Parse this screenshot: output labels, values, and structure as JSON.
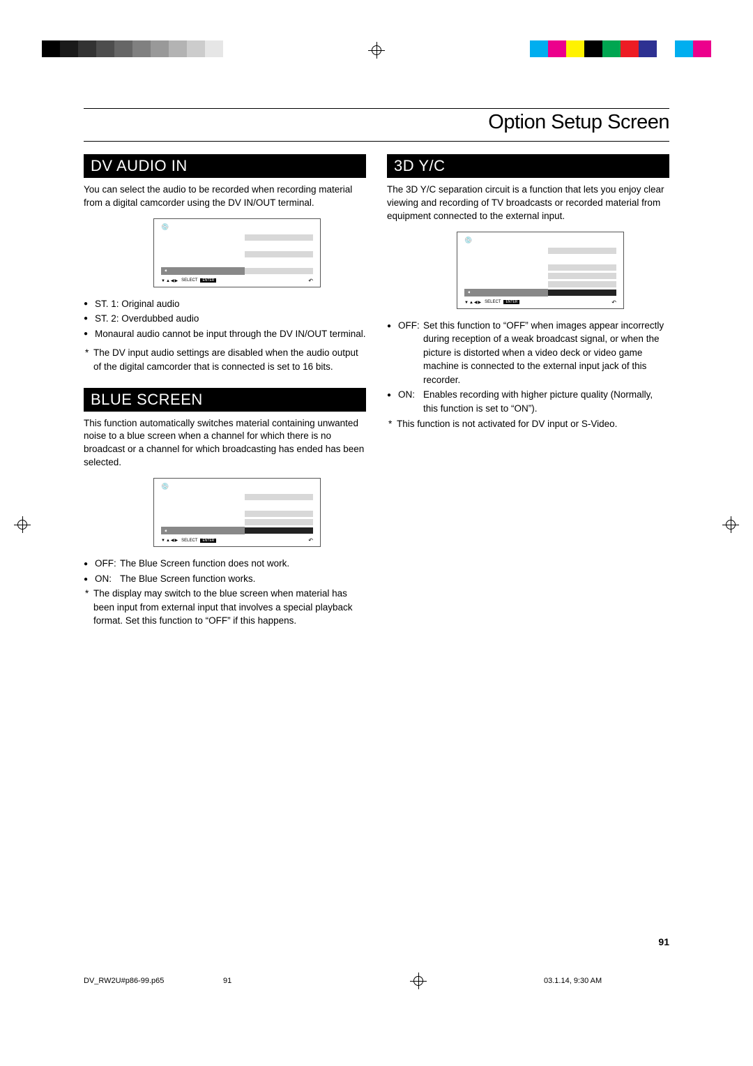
{
  "printMarks": {
    "grays": [
      "#000000",
      "#1a1a1a",
      "#333333",
      "#4d4d4d",
      "#666666",
      "#808080",
      "#999999",
      "#b3b3b3",
      "#cccccc",
      "#e6e6e6"
    ],
    "colors": [
      "#00aeef",
      "#ec008c",
      "#fff200",
      "#000000",
      "#00a651",
      "#ed1c24",
      "#2e3192",
      "#ffffff",
      "#00aeef",
      "#ec008c"
    ]
  },
  "page": {
    "title": "Option Setup Screen",
    "number": "91"
  },
  "dvAudio": {
    "heading": "DV AUDIO IN",
    "intro": "You can select the audio to be recorded when recording material from a digital camcorder using the DV IN/OUT terminal.",
    "bullets": [
      "ST. 1: Original audio",
      "ST. 2: Overdubbed audio",
      "Monaural audio cannot be input through the DV IN/OUT terminal."
    ],
    "notes": [
      "The DV input audio settings are disabled when the audio output of the digital camcorder that is connected is set to 16 bits."
    ]
  },
  "blueScreen": {
    "heading": "BLUE SCREEN",
    "intro": "This function automatically switches material containing unwanted noise to a blue screen when a channel for which there is no broadcast or a channel for which broadcasting has ended has been selected.",
    "defs": [
      {
        "label": "OFF:",
        "text": "The Blue Screen function does not work."
      },
      {
        "label": "ON:",
        "text": "The Blue Screen function works."
      }
    ],
    "notes": [
      "The display may switch to the blue screen when material has been input from external input that involves a special playback format. Set this function to “OFF” if this happens."
    ]
  },
  "ydc": {
    "heading": "3D Y/C",
    "intro": "The 3D Y/C separation circuit is a function that lets you enjoy clear viewing and recording of TV broadcasts or recorded material from equipment connected to the external input.",
    "defs": [
      {
        "label": "OFF:",
        "text": "Set this function to “OFF” when images appear incorrectly during reception of a weak broadcast signal, or when the picture is distorted when a video deck or video game machine is connected to the external input jack of this recorder."
      },
      {
        "label": "ON:",
        "text": "Enables recording with higher picture quality (Normally, this function is set to “ON”)."
      }
    ],
    "notes": [
      "This function is not activated for DV input or S-Video."
    ]
  },
  "menuFig": {
    "selectLabel": "SELECT",
    "enterLabel": "ENTER",
    "returnGlyph": "↶",
    "discGlyph": "💿",
    "arrowGlyph": "▼▲◀▶",
    "pointerGlyph": "➧"
  },
  "footer": {
    "filename": "DV_RW2U#p86-99.p65",
    "pageNum": "91",
    "datetime": "03.1.14, 9:30 AM"
  }
}
